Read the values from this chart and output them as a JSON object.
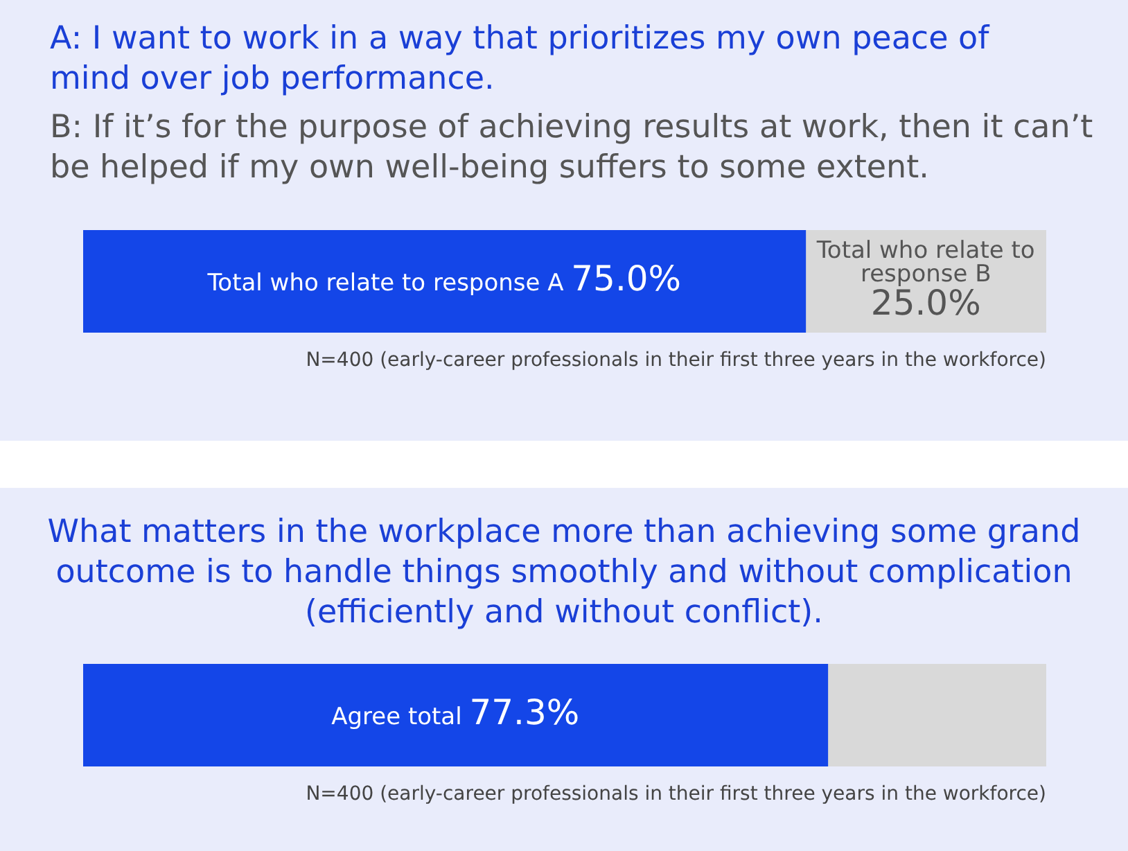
{
  "chart_data": [
    {
      "type": "bar",
      "orientation": "horizontal",
      "stacked": true,
      "title": "A: I want to work in a way that prioritizes my own peace of mind over job performance.",
      "subtitle": "B: If it’s for the purpose of achieving results at work, then it can’t be helped if my own well-being suffers to some extent.",
      "categories": [
        null
      ],
      "series": [
        {
          "name": "Total who relate to response A",
          "color": "#1446e8",
          "values": [
            75.0
          ],
          "value_labels": [
            "75.0%"
          ]
        },
        {
          "name": "Total who relate to response B",
          "color": "#d9d9d9",
          "values": [
            25.0
          ],
          "value_labels": [
            "25.0%"
          ]
        }
      ],
      "xlim": [
        0,
        100
      ],
      "grid": false,
      "legend": false,
      "annotations": [
        "N=400 (early-career professionals in their first three years in the workforce)"
      ]
    },
    {
      "type": "bar",
      "orientation": "horizontal",
      "stacked": true,
      "title": "What matters in the workplace more than achieving some grand outcome is to handle things smoothly and without complication (efficiently and without conflict).",
      "categories": [
        null
      ],
      "series": [
        {
          "name": "Agree total",
          "color": "#1446e8",
          "values": [
            77.3
          ],
          "value_labels": [
            "77.3%"
          ]
        },
        {
          "color": "#d9d9d9",
          "values": [
            22.7
          ],
          "value_labels": [
            null
          ]
        }
      ],
      "xlim": [
        0,
        100
      ],
      "grid": false,
      "legend": false,
      "annotations": [
        "N=400 (early-career professionals in their first three years in the workforce)"
      ]
    }
  ]
}
